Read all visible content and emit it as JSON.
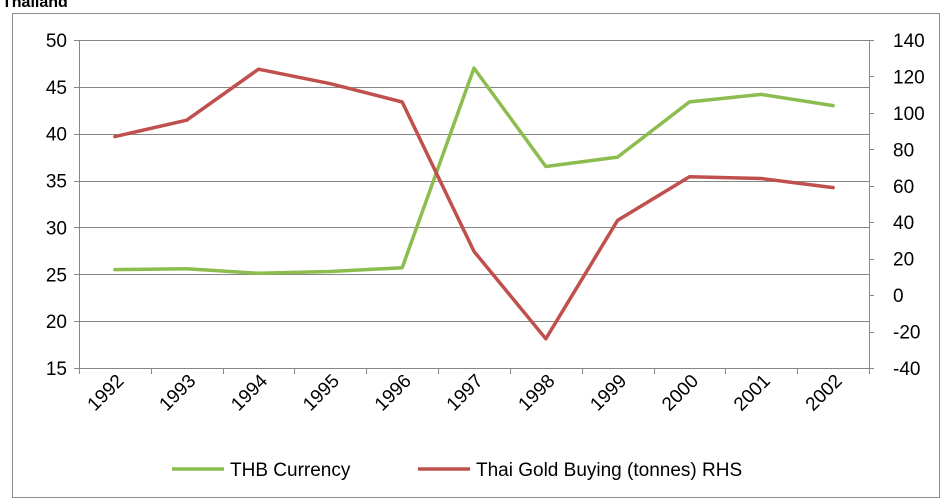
{
  "chart_data": {
    "type": "line",
    "title": "Thailand",
    "categories": [
      "1992",
      "1993",
      "1994",
      "1995",
      "1996",
      "1997",
      "1998",
      "1999",
      "2000",
      "2001",
      "2002"
    ],
    "series": [
      {
        "name": "THB Currency",
        "axis": "left",
        "color": "#8cbd4e",
        "values": [
          25.5,
          25.6,
          25.1,
          25.3,
          25.7,
          47.0,
          36.5,
          37.5,
          43.4,
          44.2,
          43.0
        ]
      },
      {
        "name": "Thai Gold Buying (tonnes) RHS",
        "axis": "right",
        "color": "#c0504d",
        "values": [
          87,
          96,
          124,
          116,
          106,
          24,
          -24,
          41,
          65,
          64,
          59
        ]
      }
    ],
    "ylim_left": [
      15,
      50
    ],
    "yticks_left": [
      15,
      20,
      25,
      30,
      35,
      40,
      45,
      50
    ],
    "ylim_right": [
      -40,
      140
    ],
    "yticks_right": [
      -40,
      -20,
      0,
      20,
      40,
      60,
      80,
      100,
      120,
      140
    ],
    "grid": "horizontal",
    "legend": "bottom"
  }
}
